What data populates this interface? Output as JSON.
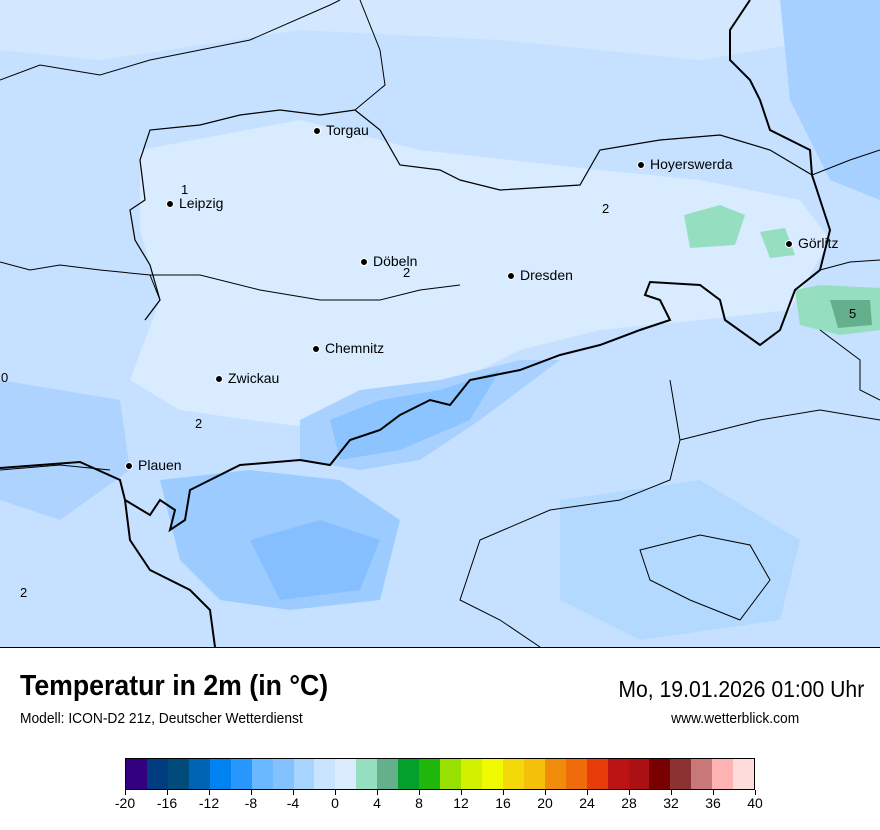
{
  "title": "Temperatur in 2m (in °C)",
  "model": "Modell: ICON-D2 21z, Deutscher Wetterdienst",
  "datetime": "Mo, 19.01.2026 01:00 Uhr",
  "website": "www.wetterblick.com",
  "cities": [
    "Torgau",
    "Leipzig",
    "Hoyerswerda",
    "Döbeln",
    "Dresden",
    "Görlitz",
    "Chemnitz",
    "Zwickau",
    "Plauen"
  ],
  "value_labels": [
    "1",
    "2",
    "2",
    "5",
    "0",
    "2",
    "2"
  ],
  "legend": {
    "unit": "°C",
    "ticks": [
      "-20",
      "-16",
      "-12",
      "-8",
      "-4",
      "0",
      "4",
      "8",
      "12",
      "16",
      "20",
      "24",
      "28",
      "32",
      "36",
      "40"
    ],
    "colors": [
      "#330080",
      "#003c80",
      "#004a7c",
      "#0064b4",
      "#0082f0",
      "#2898ff",
      "#6ab8ff",
      "#84c2ff",
      "#a6d4ff",
      "#c8e4ff",
      "#dbecff",
      "#96dec0",
      "#64b08c",
      "#04a02c",
      "#20b80c",
      "#98e000",
      "#d0f000",
      "#f0fa00",
      "#f4d80a",
      "#f4c00a",
      "#f08c0a",
      "#f06c0a",
      "#e83c0a",
      "#bc1414",
      "#aa1014",
      "#780000",
      "#8c3232",
      "#c87878",
      "#ffb4b4",
      "#ffdcdc"
    ]
  }
}
